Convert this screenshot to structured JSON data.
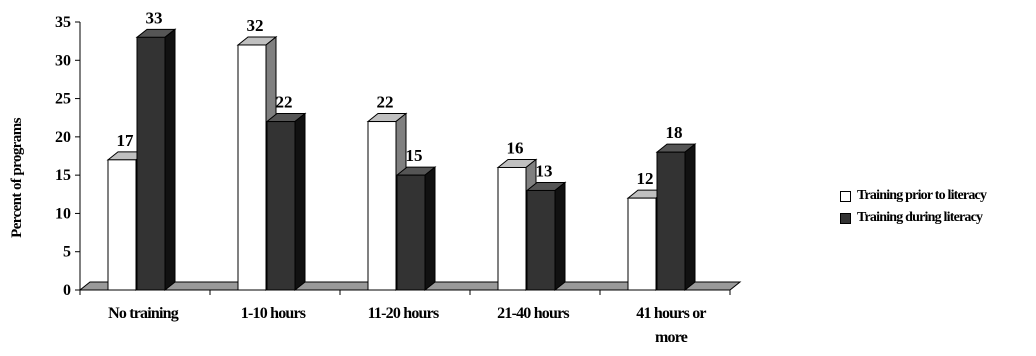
{
  "chart_data": {
    "type": "bar",
    "title": "",
    "xlabel": "",
    "ylabel": "Percent of programs",
    "ylim": [
      0,
      35
    ],
    "yticks": [
      0,
      5,
      10,
      15,
      20,
      25,
      30,
      35
    ],
    "categories": [
      "No training",
      "1-10 hours",
      "11-20 hours",
      "21-40 hours",
      "41 hours or more"
    ],
    "series": [
      {
        "name": "Training prior to literacy",
        "values": [
          17,
          32,
          22,
          16,
          12
        ],
        "color": "#ffffff"
      },
      {
        "name": "Training during literacy",
        "values": [
          33,
          22,
          15,
          13,
          18
        ],
        "color": "#333333"
      }
    ],
    "data_labels": true,
    "grid": false,
    "style": "3d",
    "legend_position": "right"
  }
}
